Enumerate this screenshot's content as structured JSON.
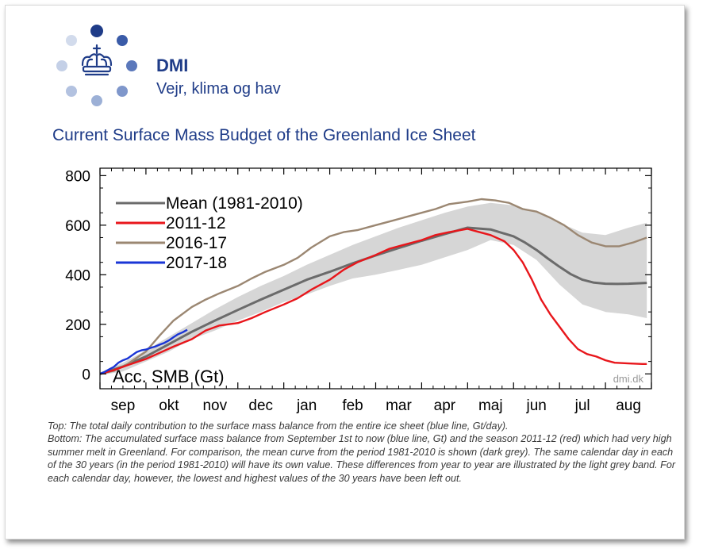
{
  "header": {
    "org_name": "DMI",
    "tagline": "Vejr, klima og hav",
    "title": "Current Surface Mass Budget of the Greenland Ice Sheet"
  },
  "colors": {
    "brand": "#1f3c88",
    "mean": "#6b6b6b",
    "band": "#d6d6d6",
    "red": "#e8161b",
    "brown": "#9b8772",
    "blue": "#1a35d6"
  },
  "chart_data": {
    "type": "line",
    "title": "",
    "xlabel": "",
    "ylabel": "Acc. SMB (Gt)",
    "ylim": [
      -60,
      830
    ],
    "yticks": [
      0,
      200,
      400,
      600,
      800
    ],
    "xlim": [
      0,
      12
    ],
    "months": [
      "sep",
      "okt",
      "nov",
      "dec",
      "jan",
      "feb",
      "mar",
      "apr",
      "maj",
      "jun",
      "jul",
      "aug"
    ],
    "watermark": "dmi.dk",
    "legend_position": "top-left",
    "grid": false,
    "band": {
      "name": "",
      "x": [
        0,
        0.5,
        1,
        1.5,
        2,
        2.5,
        3,
        3.5,
        4,
        4.5,
        5,
        5.5,
        6,
        6.5,
        7,
        7.5,
        8,
        8.5,
        9,
        9.5,
        10,
        10.5,
        11,
        11.5,
        11.9
      ],
      "upper": [
        5,
        45,
        95,
        150,
        205,
        260,
        310,
        355,
        395,
        440,
        480,
        520,
        555,
        590,
        620,
        650,
        675,
        690,
        680,
        655,
        610,
        570,
        560,
        590,
        610
      ],
      "lower": [
        -5,
        10,
        50,
        90,
        140,
        175,
        215,
        250,
        290,
        320,
        355,
        385,
        400,
        420,
        440,
        470,
        500,
        540,
        520,
        460,
        360,
        280,
        250,
        240,
        225
      ]
    },
    "series": [
      {
        "name": "Mean (1981-2010)",
        "color": "#6b6b6b",
        "x": [
          0,
          0.5,
          1,
          1.5,
          2,
          2.5,
          3,
          3.5,
          4,
          4.5,
          5,
          5.5,
          6,
          6.5,
          7,
          7.5,
          8,
          8.5,
          9,
          9.25,
          9.5,
          9.75,
          10,
          10.25,
          10.5,
          10.75,
          11,
          11.25,
          11.5,
          11.9
        ],
        "y": [
          0,
          30,
          70,
          120,
          170,
          215,
          258,
          300,
          340,
          380,
          412,
          446,
          478,
          508,
          537,
          564,
          590,
          583,
          555,
          530,
          500,
          465,
          432,
          402,
          380,
          368,
          364,
          363,
          364,
          367
        ]
      },
      {
        "name": "2011-12",
        "color": "#e8161b",
        "x": [
          0,
          0.3,
          0.6,
          1,
          1.3,
          1.6,
          2,
          2.3,
          2.6,
          3,
          3.3,
          3.6,
          4,
          4.3,
          4.6,
          5,
          5.3,
          5.6,
          6,
          6.3,
          6.6,
          7,
          7.3,
          7.6,
          8,
          8.2,
          8.5,
          8.8,
          9,
          9.2,
          9.4,
          9.6,
          9.8,
          10,
          10.2,
          10.4,
          10.6,
          10.8,
          11,
          11.2,
          11.5,
          11.8,
          11.9
        ],
        "y": [
          0,
          15,
          35,
          60,
          85,
          110,
          140,
          175,
          195,
          205,
          225,
          250,
          280,
          305,
          340,
          380,
          420,
          450,
          480,
          505,
          520,
          540,
          560,
          572,
          585,
          575,
          560,
          535,
          500,
          450,
          380,
          300,
          240,
          190,
          140,
          100,
          80,
          70,
          55,
          45,
          42,
          40,
          40
        ]
      },
      {
        "name": "2016-17",
        "color": "#9b8772",
        "x": [
          0,
          0.3,
          0.6,
          1,
          1.3,
          1.6,
          2,
          2.3,
          2.6,
          3,
          3.3,
          3.6,
          4,
          4.3,
          4.6,
          5,
          5.3,
          5.6,
          6,
          6.3,
          6.6,
          7,
          7.3,
          7.6,
          8,
          8.3,
          8.6,
          8.9,
          9.2,
          9.5,
          9.8,
          10.1,
          10.4,
          10.7,
          11,
          11.3,
          11.6,
          11.9
        ],
        "y": [
          0,
          12,
          40,
          90,
          155,
          215,
          270,
          300,
          325,
          355,
          385,
          412,
          440,
          468,
          510,
          555,
          572,
          580,
          600,
          615,
          630,
          650,
          665,
          685,
          695,
          705,
          700,
          690,
          665,
          655,
          630,
          600,
          560,
          530,
          515,
          515,
          530,
          550
        ]
      },
      {
        "name": "2017-18",
        "color": "#1a35d6",
        "x": [
          0,
          0.1,
          0.2,
          0.3,
          0.4,
          0.5,
          0.6,
          0.7,
          0.8,
          0.9,
          1.0,
          1.1,
          1.2,
          1.3,
          1.4,
          1.5,
          1.6,
          1.7,
          1.8,
          1.9
        ],
        "y": [
          0,
          8,
          18,
          28,
          45,
          55,
          62,
          75,
          88,
          95,
          98,
          105,
          110,
          118,
          125,
          135,
          148,
          160,
          168,
          178
        ]
      }
    ]
  },
  "caption": {
    "top": "Top: The total daily contribution to the surface mass balance from the entire ice sheet (blue line, Gt/day).",
    "bottom": "Bottom: The accumulated surface mass balance from September 1st to now (blue line, Gt) and the season 2011-12 (red) which had very high summer melt in Greenland. For comparison, the mean curve from the period 1981-2010 is shown (dark grey). The same calendar day in each of the 30 years (in the period 1981-2010) will have its own value. These differences from year to year are illustrated by the light grey band. For each calendar day, however, the lowest and highest values of the 30 years have been left out."
  }
}
